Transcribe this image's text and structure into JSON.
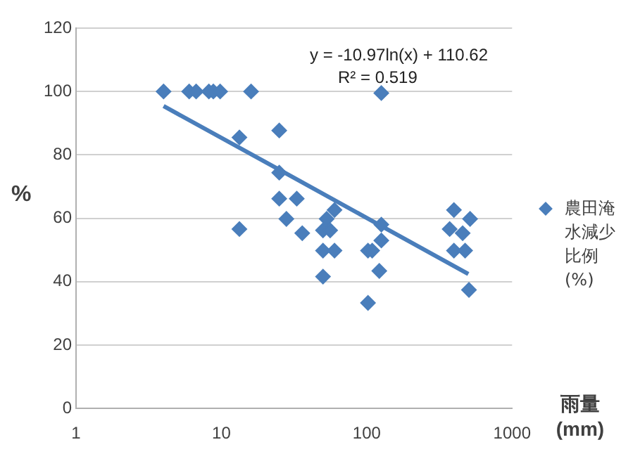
{
  "chart_data": {
    "type": "scatter",
    "xlabel": "雨量 (mm)",
    "ylabel": "%",
    "log": "x",
    "xlim": [
      1,
      1000
    ],
    "xticks": [
      1,
      10,
      100,
      1000
    ],
    "ylim": [
      0,
      120
    ],
    "yticks": [
      0,
      20,
      40,
      60,
      80,
      100,
      120
    ],
    "grid": "y",
    "legend": "right",
    "annotations": [
      "y = -10.97ln(x) + 110.62",
      "R² = 0.519"
    ],
    "series": [
      {
        "name": "農田淹水減少比例(%)",
        "color": "#4a7ebb",
        "marker": "diamond",
        "x": [
          4,
          6,
          6.7,
          8.2,
          8.8,
          9.8,
          16,
          13.3,
          13.3,
          25,
          25,
          25,
          33,
          28,
          36,
          50,
          53,
          56,
          60,
          50,
          60,
          50,
          126,
          102,
          109,
          126,
          126,
          122,
          102,
          398,
          372,
          398,
          475,
          457,
          514,
          505
        ],
        "values": [
          100,
          100,
          100,
          100,
          100,
          100,
          100,
          85.5,
          56.6,
          87.7,
          74.4,
          66.2,
          66.2,
          59.8,
          55.3,
          56.2,
          59.8,
          56.2,
          62.6,
          49.8,
          49.8,
          41.6,
          99.5,
          49.8,
          49.8,
          58,
          53,
          43.4,
          33.3,
          62.6,
          56.6,
          49.8,
          49.8,
          55.3,
          59.8,
          37.4
        ]
      },
      {
        "type": "line",
        "color": "#4a7ebb",
        "marker": "none",
        "x": [
          4,
          20,
          100,
          500
        ],
        "values": [
          95.4,
          77.8,
          60.1,
          42.4
        ]
      }
    ]
  }
}
